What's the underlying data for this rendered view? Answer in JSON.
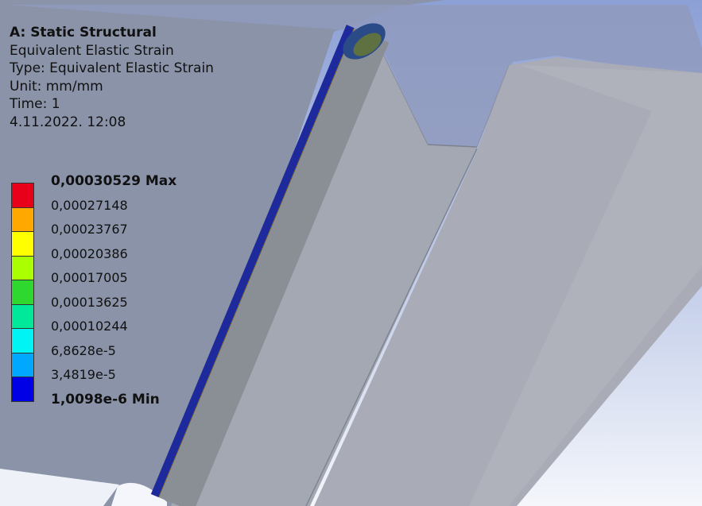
{
  "info": {
    "title": "A: Static Structural",
    "result": "Equivalent Elastic Strain",
    "type": "Type: Equivalent Elastic Strain",
    "unit": "Unit: mm/mm",
    "time": "Time: 1",
    "timestamp": "4.11.2022. 12:08"
  },
  "legend": {
    "labels": [
      "0,00030529 Max",
      "0,00027148",
      "0,00023767",
      "0,00020386",
      "0,00017005",
      "0,00013625",
      "0,00010244",
      "6,8628e-5",
      "3,4819e-5",
      "1,0098e-6 Min"
    ],
    "colors": [
      "#e8001a",
      "#ffa800",
      "#ffff00",
      "#aaff00",
      "#2ed82e",
      "#00e89a",
      "#00f4f4",
      "#00a8ff",
      "#0000e6"
    ]
  },
  "colors": {
    "background_top": "#8ea2d8",
    "background_bottom": "#f3f5fb",
    "body_gray": "#9aa0ac"
  }
}
